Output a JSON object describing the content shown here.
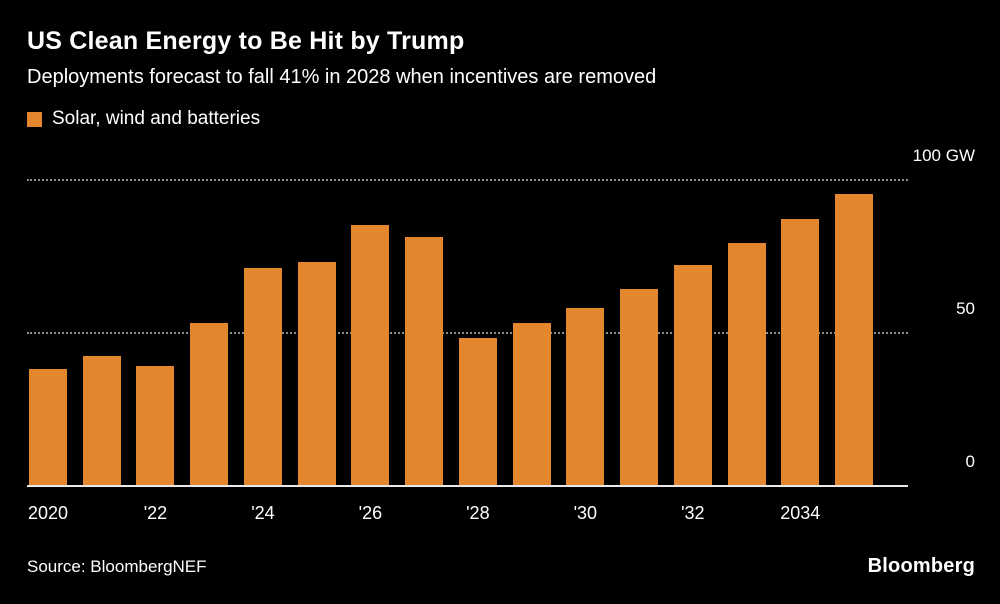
{
  "header": {
    "title": "US Clean Energy to Be Hit by Trump",
    "subtitle": "Deployments forecast to fall 41% in 2028 when incentives are removed"
  },
  "legend": {
    "label": "Solar, wind and batteries",
    "color": "#E2872D"
  },
  "chart_data": {
    "type": "bar",
    "title": "US Clean Energy to Be Hit by Trump",
    "subtitle": "Deployments forecast to fall 41% in 2028 when incentives are removed",
    "series_name": "Solar, wind and batteries",
    "unit": "GW",
    "categories": [
      2020,
      2021,
      2022,
      2023,
      2024,
      2025,
      2026,
      2027,
      2028,
      2029,
      2030,
      2031,
      2032,
      2033,
      2034,
      2035
    ],
    "values": [
      38,
      42,
      39,
      53,
      71,
      73,
      85,
      81,
      48,
      53,
      58,
      64,
      72,
      79,
      87,
      95
    ],
    "ylim": [
      0,
      100
    ],
    "y_ticks": [
      {
        "value": 100,
        "label": "100 GW",
        "line": "dotted"
      },
      {
        "value": 50,
        "label": "50",
        "line": "dotted"
      },
      {
        "value": 0,
        "label": "0",
        "line": "solid"
      }
    ],
    "x_ticks": [
      {
        "index": 0,
        "label": "2020"
      },
      {
        "index": 2,
        "label": "'22"
      },
      {
        "index": 4,
        "label": "'24"
      },
      {
        "index": 6,
        "label": "'26"
      },
      {
        "index": 8,
        "label": "'28"
      },
      {
        "index": 10,
        "label": "'30"
      },
      {
        "index": 12,
        "label": "'32"
      },
      {
        "index": 14,
        "label": "2034"
      }
    ],
    "bar_color": "#E2872D",
    "background_color": "#000000",
    "grid": "horizontal-dotted",
    "legend_position": "top-left",
    "y_axis_position": "right"
  },
  "footer": {
    "source": "Source: BloombergNEF",
    "logo": "Bloomberg"
  }
}
